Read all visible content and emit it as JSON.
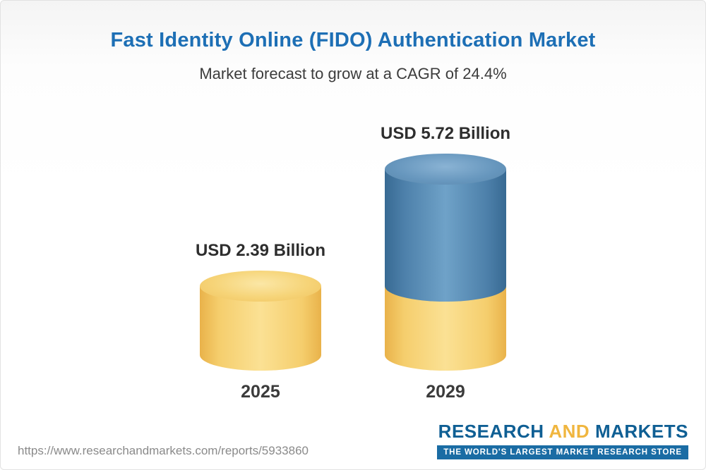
{
  "page": {
    "title": "Fast Identity Online (FIDO) Authentication Market",
    "subtitle": "Market forecast to grow at a CAGR of 24.4%"
  },
  "chart_data": {
    "type": "bar",
    "title": "Fast Identity Online (FIDO) Authentication Market",
    "subtitle": "Market forecast to grow at a CAGR of 24.4%",
    "cagr_percent": 24.4,
    "unit": "USD Billion",
    "categories": [
      "2025",
      "2029"
    ],
    "values": [
      2.39,
      5.72
    ],
    "value_labels": [
      "USD 2.39 Billion",
      "USD 5.72 Billion"
    ],
    "legend_position": "none",
    "grid": false,
    "colors": {
      "base_segment": "#f5ce6d",
      "growth_segment": "#4d80aa"
    }
  },
  "footer": {
    "url": "https://www.researchandmarkets.com/reports/5933860",
    "logo": {
      "research": "RESEARCH",
      "and": "AND",
      "markets": "MARKETS",
      "tagline": "THE WORLD'S LARGEST MARKET RESEARCH STORE"
    }
  }
}
